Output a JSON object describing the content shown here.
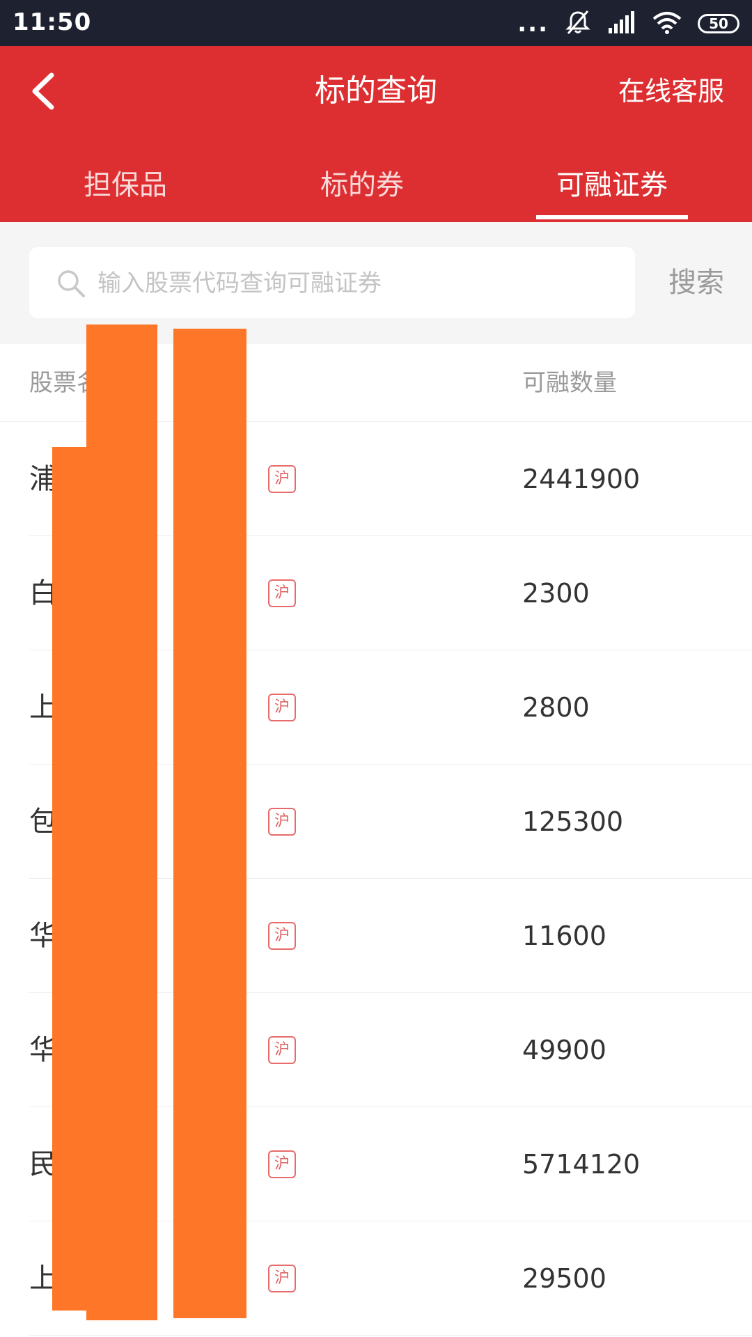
{
  "status_bar": {
    "time": "11:50",
    "dots": "...",
    "battery": "50",
    "icons": [
      "mute-icon",
      "signal-icon",
      "wifi-icon",
      "battery-icon"
    ]
  },
  "header": {
    "title": "标的查询",
    "service_label": "在线客服",
    "background_color": "#dd2f31"
  },
  "tabs": [
    {
      "label": "担保品"
    },
    {
      "label": "标的券"
    },
    {
      "label": "可融证券"
    }
  ],
  "active_tab_index": 2,
  "search": {
    "placeholder": "输入股票代码查询可融证券",
    "button_label": "搜索"
  },
  "table": {
    "columns": [
      "股票名称",
      "可融数量"
    ],
    "column_visible_text": [
      "股票名"
    ],
    "rows": [
      {
        "name": "浦",
        "market": "沪",
        "qty": "2441900"
      },
      {
        "name": "白",
        "market": "沪",
        "qty": "2300"
      },
      {
        "name": "上",
        "market": "沪",
        "qty": "2800"
      },
      {
        "name": "包",
        "market": "沪",
        "qty": "125300"
      },
      {
        "name": "华",
        "market": "沪",
        "qty": "11600"
      },
      {
        "name": "华",
        "market": "沪",
        "qty": "49900"
      },
      {
        "name": "民",
        "market": "沪",
        "qty": "5714120"
      },
      {
        "name": "上",
        "market": "沪",
        "qty": "29500"
      }
    ]
  }
}
